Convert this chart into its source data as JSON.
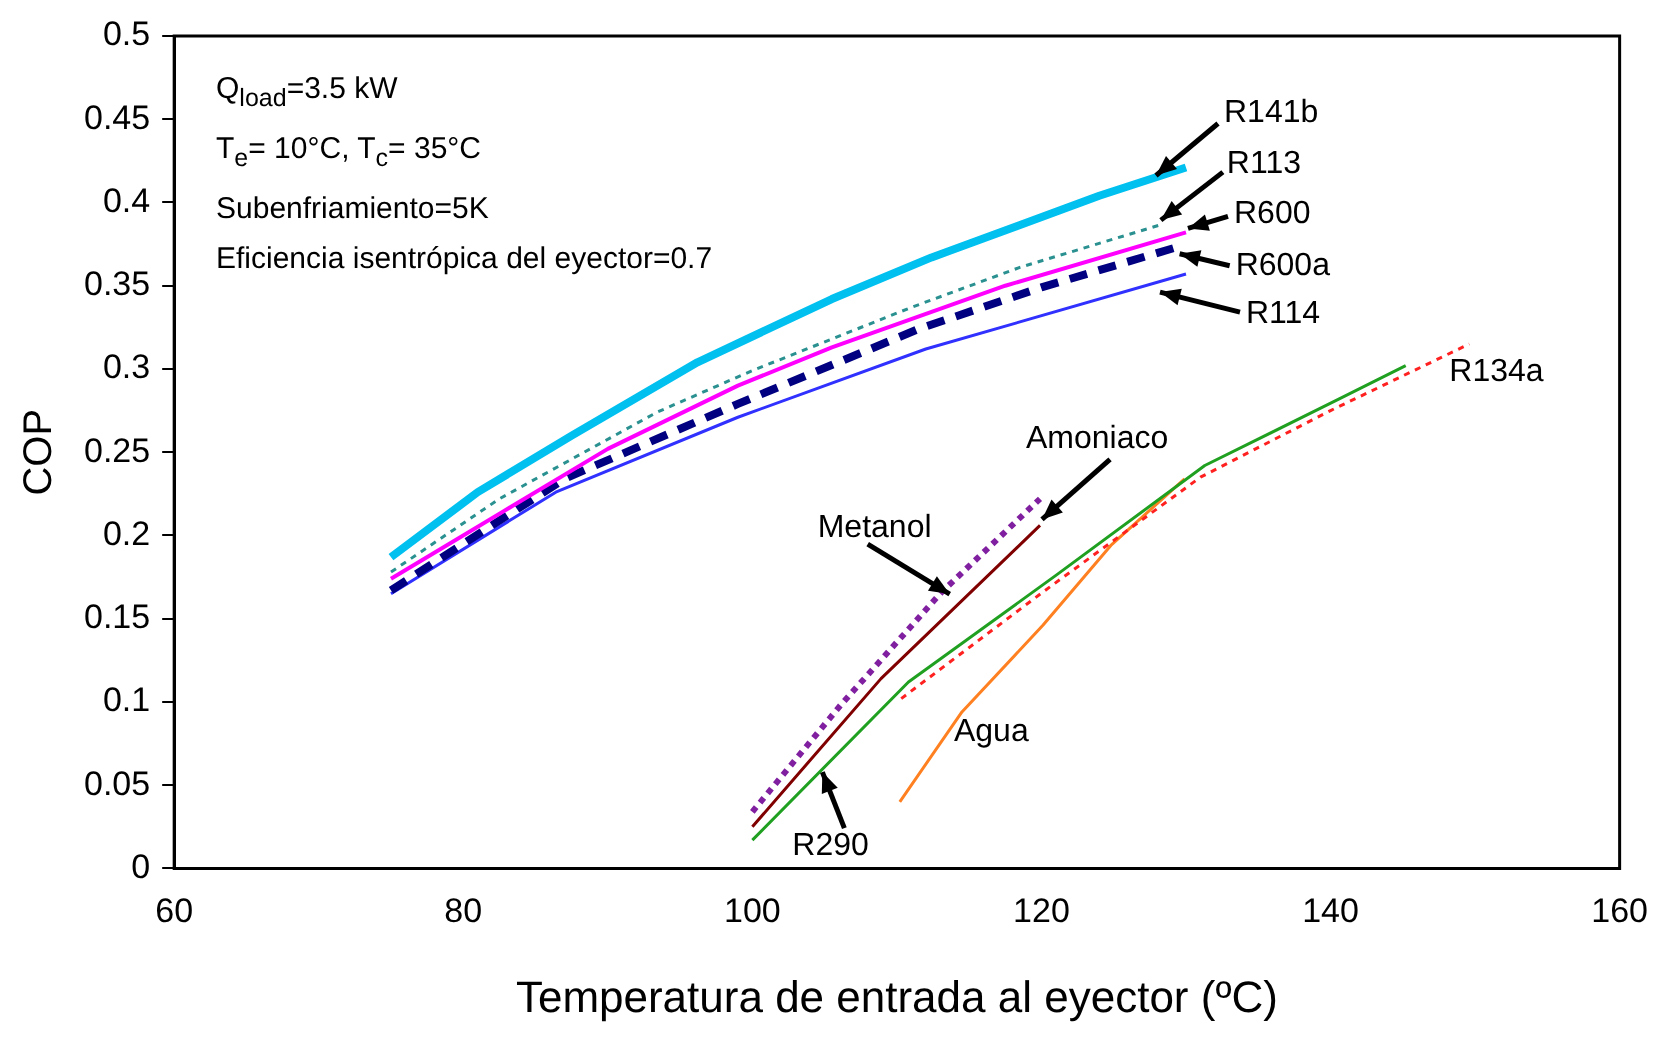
{
  "chart_data": {
    "type": "line",
    "xlabel": "Temperatura de entrada al eyector (ºC)",
    "ylabel": "COP",
    "xlim": [
      60,
      160
    ],
    "xticks": [
      60,
      80,
      100,
      120,
      140,
      160
    ],
    "ylim": [
      0,
      0.5
    ],
    "yticks": [
      0,
      0.05,
      0.1,
      0.15,
      0.2,
      0.25,
      0.3,
      0.35,
      0.4,
      0.45,
      0.5
    ],
    "grid": false,
    "legend": false,
    "marker": "none",
    "annotations": [
      "Q$_{load}$=3.5 kW",
      "T$_{e}$= 10°C, T$_{c}$= 35°C",
      "Subenfriamiento=5K",
      "Eficiencia isentrópica del eyector=0.7"
    ],
    "series": [
      {
        "name": "R141b",
        "color": "#00c0f0",
        "line_style": "solid",
        "x": [
          75,
          81,
          87.5,
          96.2,
          105.5,
          112.4,
          124,
          130
        ],
        "values": [
          0.187,
          0.226,
          0.26,
          0.304,
          0.342,
          0.367,
          0.404,
          0.421
        ]
      },
      {
        "name": "R113",
        "color": "#2a9090",
        "line_style": "dotted",
        "x": [
          75,
          82.5,
          93.4,
          100,
          111,
          118.5,
          128.4
        ],
        "values": [
          0.178,
          0.222,
          0.274,
          0.299,
          0.337,
          0.361,
          0.387
        ]
      },
      {
        "name": "R600",
        "color": "#ff00ff",
        "line_style": "solid",
        "x": [
          75,
          90,
          99,
          105.5,
          117.5,
          130
        ],
        "values": [
          0.174,
          0.252,
          0.29,
          0.313,
          0.35,
          0.382
        ]
      },
      {
        "name": "R600a",
        "color": "#000080",
        "line_style": "dashed",
        "x": [
          75,
          87,
          99,
          111.5,
          120,
          129.7
        ],
        "values": [
          0.167,
          0.234,
          0.279,
          0.324,
          0.349,
          0.374
        ]
      },
      {
        "name": "R114",
        "color": "#3030ff",
        "line_style": "solid",
        "x": [
          75,
          86.4,
          99,
          112,
          130
        ],
        "values": [
          0.165,
          0.226,
          0.271,
          0.312,
          0.357
        ]
      },
      {
        "name": "Metanol",
        "color": "#8020a0",
        "line_style": "dotted",
        "x": [
          100,
          106.1,
          113.1,
          119.9
        ],
        "values": [
          0.034,
          0.098,
          0.166,
          0.222
        ]
      },
      {
        "name": "Amoniaco",
        "color": "#800000",
        "line_style": "solid",
        "x": [
          100,
          108.9,
          119.9
        ],
        "values": [
          0.025,
          0.114,
          0.206
        ]
      },
      {
        "name": "R290",
        "color": "#20a020",
        "line_style": "solid",
        "x": [
          100,
          110.8,
          121,
          131.3,
          140.6,
          145.2
        ],
        "values": [
          0.017,
          0.112,
          0.176,
          0.242,
          0.282,
          0.302
        ]
      },
      {
        "name": "R134a",
        "color": "#ff2020",
        "line_style": "dotted",
        "x": [
          110.3,
          120.1,
          131,
          140,
          149.6
        ],
        "values": [
          0.102,
          0.166,
          0.235,
          0.275,
          0.315
        ]
      },
      {
        "name": "Agua",
        "color": "#ff8020",
        "line_style": "solid",
        "x": [
          110.2,
          114.5,
          120.1,
          124.8,
          129.9
        ],
        "values": [
          0.04,
          0.094,
          0.146,
          0.194,
          0.234
        ]
      }
    ]
  }
}
